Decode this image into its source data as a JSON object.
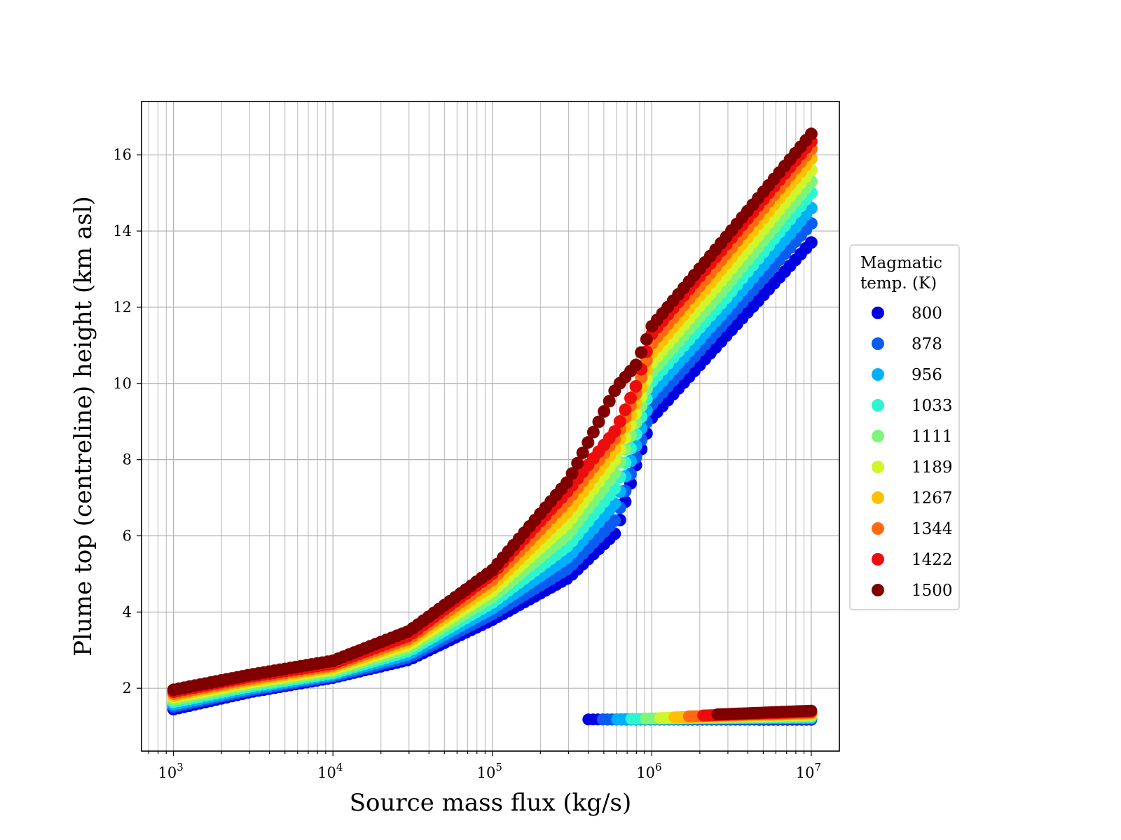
{
  "chart_data": {
    "type": "scatter",
    "xlabel": "Source mass flux (kg/s)",
    "ylabel": "Plume top (centreline) height (km asl)",
    "xscale": "log",
    "xlim": [
      630,
      15000000
    ],
    "ylim": [
      0.35,
      17.4
    ],
    "grid": true,
    "x_ticks": [
      1000,
      10000,
      100000,
      1000000,
      10000000
    ],
    "x_tick_labels": [
      {
        "base": "10",
        "exp": "3"
      },
      {
        "base": "10",
        "exp": "4"
      },
      {
        "base": "10",
        "exp": "5"
      },
      {
        "base": "10",
        "exp": "6"
      },
      {
        "base": "10",
        "exp": "7"
      }
    ],
    "y_ticks": [
      2,
      4,
      6,
      8,
      10,
      12,
      14,
      16
    ],
    "legend": {
      "title": [
        "Magmatic",
        "temp. (K)"
      ],
      "placement": "outside-right",
      "entries": [
        "800",
        "878",
        "956",
        "1033",
        "1111",
        "1189",
        "1267",
        "1344",
        "1422",
        "1500"
      ]
    },
    "colors": [
      "#0000e0",
      "#0a5cf0",
      "#00b0ff",
      "#2cf5d0",
      "#7df57a",
      "#d0f52a",
      "#ffc000",
      "#ff6a10",
      "#ee0d0d",
      "#800000"
    ],
    "series": [
      {
        "name": "800",
        "color": "#0000e0",
        "x": [
          1000,
          3000,
          10000,
          30000,
          100000,
          300000,
          600000,
          800000,
          1000000,
          3000000,
          10000000
        ],
        "y": [
          1.45,
          1.9,
          2.28,
          2.75,
          3.8,
          4.9,
          6.1,
          7.9,
          9.1,
          11.3,
          13.7
        ]
      },
      {
        "name": "878",
        "color": "#0a5cf0",
        "x": [
          1000,
          3000,
          10000,
          30000,
          100000,
          300000,
          600000,
          800000,
          1000000,
          3000000,
          10000000
        ],
        "y": [
          1.52,
          1.95,
          2.32,
          2.82,
          3.95,
          5.15,
          6.45,
          8.1,
          9.45,
          11.7,
          14.2
        ]
      },
      {
        "name": "956",
        "color": "#00b0ff",
        "x": [
          1000,
          3000,
          10000,
          30000,
          100000,
          300000,
          600000,
          800000,
          1000000,
          3000000,
          10000000
        ],
        "y": [
          1.58,
          2.0,
          2.36,
          2.9,
          4.1,
          5.45,
          6.9,
          8.4,
          9.75,
          12.0,
          14.6
        ]
      },
      {
        "name": "1033",
        "color": "#2cf5d0",
        "x": [
          1000,
          3000,
          10000,
          30000,
          100000,
          300000,
          600000,
          800000,
          1000000,
          3000000,
          10000000
        ],
        "y": [
          1.64,
          2.05,
          2.4,
          2.98,
          4.25,
          5.75,
          7.3,
          8.7,
          10.05,
          12.3,
          15.0
        ]
      },
      {
        "name": "1111",
        "color": "#7df57a",
        "x": [
          1000,
          3000,
          10000,
          30000,
          100000,
          300000,
          600000,
          800000,
          1000000,
          3000000,
          10000000
        ],
        "y": [
          1.7,
          2.1,
          2.45,
          3.06,
          4.4,
          6.05,
          7.7,
          9.0,
          10.3,
          12.6,
          15.3
        ]
      },
      {
        "name": "1189",
        "color": "#d0f52a",
        "x": [
          1000,
          3000,
          10000,
          30000,
          100000,
          300000,
          600000,
          800000,
          1000000,
          3000000,
          10000000
        ],
        "y": [
          1.76,
          2.15,
          2.5,
          3.14,
          4.55,
          6.35,
          8.05,
          9.25,
          10.55,
          12.9,
          15.6
        ]
      },
      {
        "name": "1267",
        "color": "#ffc000",
        "x": [
          1000,
          3000,
          10000,
          30000,
          100000,
          300000,
          600000,
          800000,
          1000000,
          3000000,
          10000000
        ],
        "y": [
          1.81,
          2.2,
          2.55,
          3.22,
          4.7,
          6.65,
          8.35,
          9.5,
          10.8,
          13.2,
          15.9
        ]
      },
      {
        "name": "1344",
        "color": "#ff6a10",
        "x": [
          1000,
          3000,
          10000,
          30000,
          100000,
          300000,
          600000,
          800000,
          1000000,
          3000000,
          10000000
        ],
        "y": [
          1.86,
          2.25,
          2.6,
          3.3,
          4.85,
          6.95,
          8.6,
          9.75,
          11.05,
          13.45,
          16.15
        ]
      },
      {
        "name": "1422",
        "color": "#ee0d0d",
        "x": [
          1000,
          3000,
          10000,
          30000,
          100000,
          300000,
          600000,
          800000,
          1000000,
          3000000,
          10000000
        ],
        "y": [
          1.91,
          2.3,
          2.65,
          3.38,
          5.0,
          7.2,
          8.8,
          9.95,
          11.3,
          13.7,
          16.35
        ]
      },
      {
        "name": "1500",
        "color": "#800000",
        "x": [
          1000,
          3000,
          10000,
          30000,
          100000,
          300000,
          600000,
          800000,
          1000000,
          3000000,
          10000000
        ],
        "y": [
          1.96,
          2.35,
          2.72,
          3.5,
          5.1,
          7.45,
          9.9,
          10.5,
          11.5,
          13.9,
          16.55
        ]
      }
    ],
    "low_branch": {
      "x_range": [
        400000,
        10000000
      ],
      "y_range": [
        1.1,
        1.6
      ],
      "note_y": [
        1.17,
        1.22,
        1.25,
        1.3,
        1.35,
        1.4,
        1.45,
        1.5,
        1.55,
        1.6
      ]
    }
  }
}
